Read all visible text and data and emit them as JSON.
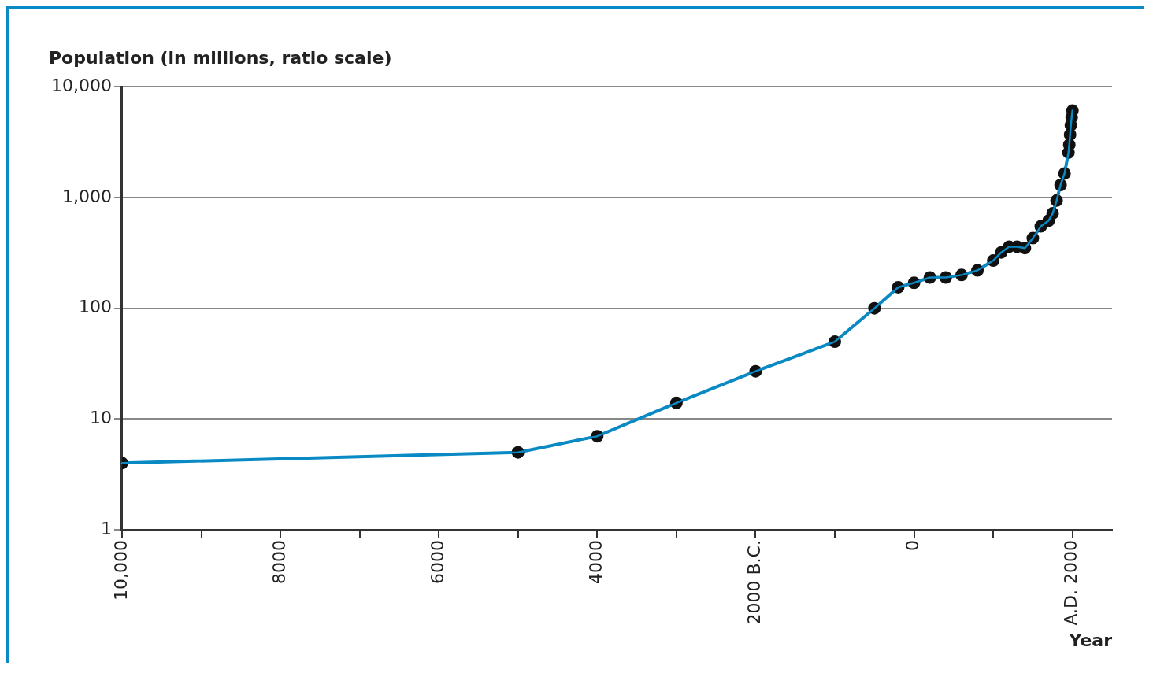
{
  "chart_data": {
    "type": "line",
    "ylabel": "Population (in millions, ratio scale)",
    "xlabel": "Year",
    "x": [
      -10000,
      -5000,
      -4000,
      -3000,
      -2000,
      -1000,
      -500,
      -200,
      0,
      200,
      400,
      600,
      800,
      1000,
      1100,
      1200,
      1300,
      1400,
      1500,
      1600,
      1700,
      1750,
      1800,
      1850,
      1900,
      1950,
      1960,
      1970,
      1980,
      1990,
      2000
    ],
    "series": [
      {
        "color": "#0a8ac4",
        "values": [
          4,
          5,
          7,
          14,
          27,
          50,
          100,
          155,
          170,
          190,
          190,
          200,
          220,
          270,
          320,
          360,
          360,
          350,
          430,
          550,
          620,
          720,
          940,
          1300,
          1650,
          2550,
          3000,
          3700,
          4500,
          5300,
          6100
        ]
      }
    ],
    "log": "y",
    "ylim": [
      1,
      10000
    ],
    "yticks": [
      1,
      10,
      100,
      {
        "value": 1000,
        "label": "1,000"
      },
      {
        "value": 10000,
        "label": "10,000"
      }
    ],
    "xlim": [
      -10000,
      2500
    ],
    "xticks": [
      {
        "value": -10000,
        "label": "10,000"
      },
      {
        "value": -9000,
        "label": null
      },
      {
        "value": -8000,
        "label": "8000"
      },
      {
        "value": -7000,
        "label": null
      },
      {
        "value": -6000,
        "label": "6000"
      },
      {
        "value": -5000,
        "label": null
      },
      {
        "value": -4000,
        "label": "4000"
      },
      {
        "value": -3000,
        "label": null
      },
      {
        "value": -2000,
        "label": "2000 B.C."
      },
      {
        "value": -1000,
        "label": null
      },
      0,
      {
        "value": 1000,
        "label": null
      },
      {
        "value": 2000,
        "label": "A.D. 2000"
      }
    ],
    "grid": "y",
    "marker": "circle",
    "legend": false
  }
}
